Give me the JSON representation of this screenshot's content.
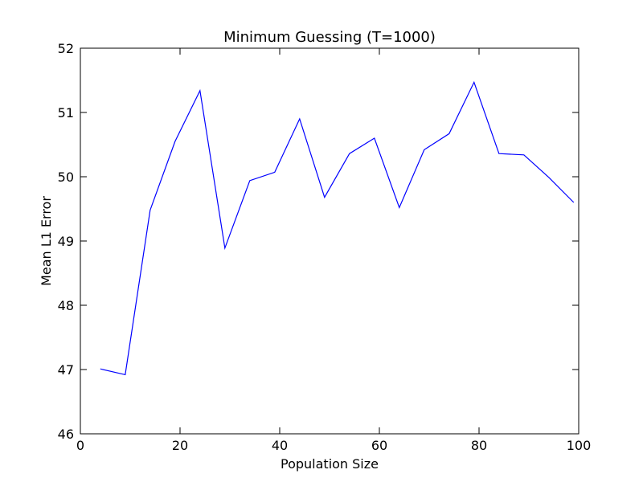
{
  "chart_data": {
    "type": "line",
    "title": "Minimum Guessing (T=1000)",
    "xlabel": "Population Size",
    "ylabel": "Mean L1 Error",
    "xlim": [
      0,
      100
    ],
    "ylim": [
      46,
      52
    ],
    "xticks": [
      0,
      20,
      40,
      60,
      80,
      100
    ],
    "yticks": [
      46,
      47,
      48,
      49,
      50,
      51,
      52
    ],
    "grid": false,
    "series": [
      {
        "color": "#0000ff",
        "x": [
          4,
          9,
          14,
          19,
          24,
          29,
          34,
          39,
          44,
          49,
          54,
          59,
          64,
          69,
          74,
          79,
          84,
          89,
          94,
          99
        ],
        "y": [
          47.01,
          46.92,
          49.48,
          50.55,
          51.34,
          48.89,
          49.94,
          50.07,
          50.9,
          49.68,
          50.36,
          50.6,
          49.52,
          50.42,
          50.67,
          51.47,
          50.36,
          50.34,
          49.99,
          49.6
        ]
      }
    ]
  }
}
